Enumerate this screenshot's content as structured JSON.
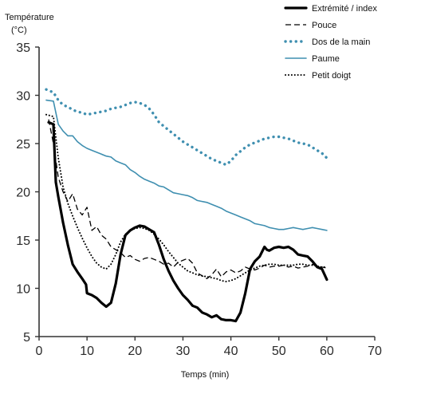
{
  "chart_data": {
    "type": "line",
    "ylabel_line1": "Température",
    "ylabel_line2": "(°C)",
    "xlabel": "Temps (min)",
    "xlim": [
      0,
      70
    ],
    "ylim": [
      5,
      35
    ],
    "xticks": [
      0,
      10,
      20,
      30,
      40,
      50,
      60,
      70
    ],
    "yticks": [
      5,
      10,
      15,
      20,
      25,
      30,
      35
    ],
    "grid": false,
    "legend_position": "top-right",
    "series": [
      {
        "name": "Extrémité / index",
        "color": "#000000",
        "style": "solid-thick",
        "x": [
          2,
          3,
          3.5,
          4,
          5,
          6,
          7,
          8,
          9,
          9.8,
          10,
          11,
          12,
          13,
          14,
          15,
          16,
          17,
          18,
          19,
          20,
          21,
          22,
          23,
          24,
          25,
          26,
          27,
          28,
          29,
          30,
          31,
          32,
          33,
          34,
          35,
          36,
          37,
          38,
          39,
          40,
          41,
          42,
          43,
          44,
          45,
          46,
          47,
          47.5,
          48,
          49,
          50,
          51,
          52,
          53,
          54,
          55,
          56,
          57,
          58,
          59,
          60
        ],
        "y": [
          27.2,
          27,
          21,
          19.5,
          16.8,
          14.5,
          12.5,
          11.7,
          11,
          10.4,
          9.5,
          9.3,
          9,
          8.5,
          8.1,
          8.5,
          10.5,
          13.5,
          15.5,
          16,
          16.3,
          16.5,
          16.4,
          16.1,
          15.8,
          14.5,
          13,
          11.8,
          10.8,
          10,
          9.3,
          8.8,
          8.2,
          8,
          7.5,
          7.3,
          7,
          7.2,
          6.8,
          6.7,
          6.7,
          6.6,
          7.5,
          9.5,
          12,
          12.8,
          13.3,
          14.3,
          14,
          13.9,
          14.2,
          14.3,
          14.2,
          14.3,
          14,
          13.5,
          13.4,
          13.3,
          12.8,
          12.2,
          12,
          10.9
        ]
      },
      {
        "name": "Pouce",
        "color": "#000000",
        "style": "dashed",
        "x": [
          2,
          3,
          4,
          5,
          6,
          7,
          8,
          9,
          10,
          11,
          12,
          13,
          14,
          15,
          16,
          17,
          18,
          19,
          20,
          21,
          22,
          23,
          24,
          25,
          26,
          27,
          28,
          29,
          30,
          31,
          32,
          33,
          34,
          35,
          36,
          37,
          38,
          39,
          40,
          41,
          42,
          43,
          44,
          45,
          46,
          47,
          48,
          49,
          50,
          51,
          52,
          53,
          54,
          55,
          56,
          57,
          58,
          59,
          60
        ],
        "y": [
          27.5,
          25,
          21.5,
          20,
          19,
          19.8,
          18.2,
          17.6,
          18.4,
          16,
          16.4,
          15.5,
          15.1,
          14.3,
          14,
          13.7,
          13.2,
          13.4,
          13,
          12.8,
          13.1,
          13.2,
          13,
          12.8,
          12.5,
          12.6,
          12.2,
          12.7,
          12.9,
          13.1,
          12.6,
          11.6,
          11.3,
          11,
          11.4,
          12,
          11.2,
          11.7,
          11.9,
          11.6,
          11.8,
          12.2,
          12,
          11.9,
          12.1,
          12.4,
          12.2,
          12.3,
          12.3,
          12.4,
          12.2,
          12.3,
          12.1,
          12.2,
          12.3,
          12.5,
          12.3,
          12.2,
          12.1
        ]
      },
      {
        "name": "Dos de la main",
        "color": "#3f8fb0",
        "style": "dotted-thick",
        "x": [
          1.5,
          3,
          4,
          5,
          6,
          7,
          8,
          9,
          10,
          11,
          12,
          13,
          14,
          15,
          16,
          17,
          18,
          19,
          20,
          21,
          22,
          23,
          24,
          25,
          26,
          27,
          28,
          29,
          30,
          31,
          32,
          33,
          34,
          35,
          36,
          37,
          38,
          39,
          40,
          41,
          42,
          43,
          44,
          45,
          46,
          47,
          48,
          49,
          50,
          51,
          52,
          53,
          54,
          55,
          56,
          57,
          58,
          59,
          60
        ],
        "y": [
          30.6,
          30.3,
          29.5,
          29,
          28.8,
          28.5,
          28.3,
          28.2,
          28,
          28.1,
          28.2,
          28.3,
          28.4,
          28.6,
          28.7,
          28.8,
          29,
          29.2,
          29.3,
          29.2,
          29,
          28.6,
          28,
          27.2,
          26.8,
          26.4,
          26,
          25.6,
          25.2,
          24.9,
          24.6,
          24.3,
          24,
          23.7,
          23.4,
          23.2,
          23,
          22.8,
          23.2,
          23.8,
          24.2,
          24.6,
          24.9,
          25.1,
          25.3,
          25.5,
          25.6,
          25.7,
          25.7,
          25.6,
          25.5,
          25.3,
          25.1,
          25,
          24.9,
          24.6,
          24.3,
          24,
          23.5
        ]
      },
      {
        "name": "Paume",
        "color": "#3f8fb0",
        "style": "solid",
        "x": [
          1.5,
          3,
          4,
          5,
          6,
          7,
          8,
          9,
          10,
          11,
          12,
          13,
          14,
          15,
          16,
          17,
          18,
          19,
          20,
          21,
          22,
          23,
          24,
          25,
          26,
          27,
          28,
          29,
          30,
          31,
          32,
          33,
          34,
          35,
          36,
          37,
          38,
          39,
          40,
          41,
          42,
          43,
          44,
          45,
          46,
          47,
          48,
          49,
          50,
          51,
          52,
          53,
          54,
          55,
          56,
          57,
          58,
          59,
          60
        ],
        "y": [
          29.5,
          29.4,
          27,
          26.3,
          25.8,
          25.8,
          25.2,
          24.8,
          24.5,
          24.3,
          24.1,
          23.9,
          23.7,
          23.6,
          23.2,
          23,
          22.8,
          22.3,
          22,
          21.6,
          21.3,
          21.1,
          20.9,
          20.6,
          20.5,
          20.2,
          19.9,
          19.8,
          19.7,
          19.6,
          19.4,
          19.1,
          19,
          18.9,
          18.7,
          18.5,
          18.3,
          18,
          17.8,
          17.6,
          17.4,
          17.2,
          17,
          16.7,
          16.6,
          16.5,
          16.3,
          16.2,
          16.1,
          16.1,
          16.2,
          16.3,
          16.2,
          16.1,
          16.2,
          16.3,
          16.2,
          16.1,
          16
        ]
      },
      {
        "name": "Petit doigt",
        "color": "#000000",
        "style": "dotted",
        "x": [
          1.5,
          3,
          4,
          5,
          6,
          7,
          8,
          9,
          10,
          11,
          12,
          13,
          14,
          15,
          16,
          17,
          18,
          19,
          20,
          21,
          22,
          23,
          24,
          25,
          26,
          27,
          28,
          29,
          30,
          31,
          32,
          33,
          34,
          35,
          36,
          37,
          38,
          39,
          40,
          41,
          42,
          43,
          44,
          45,
          46,
          47,
          48,
          49,
          50,
          51,
          52,
          53,
          54,
          55,
          56,
          57,
          58,
          59,
          60
        ],
        "y": [
          28,
          27.8,
          23.5,
          20.5,
          18.8,
          17.5,
          16.3,
          15.2,
          14.2,
          13.3,
          12.6,
          12.2,
          12,
          12.5,
          13.5,
          14.8,
          15.6,
          16,
          16.2,
          16.3,
          16.2,
          16,
          15.6,
          15.1,
          14.5,
          13.8,
          13.2,
          12.6,
          12.2,
          11.8,
          11.6,
          11.4,
          11.3,
          11.2,
          11.1,
          11,
          10.8,
          10.7,
          10.8,
          11,
          11.3,
          11.6,
          11.9,
          12.1,
          12.3,
          12.4,
          12.5,
          12.5,
          12.4,
          12.4,
          12.4,
          12.4,
          12.5,
          12.5,
          12.4,
          12.4,
          12.3,
          12.2,
          12.2
        ]
      }
    ]
  }
}
